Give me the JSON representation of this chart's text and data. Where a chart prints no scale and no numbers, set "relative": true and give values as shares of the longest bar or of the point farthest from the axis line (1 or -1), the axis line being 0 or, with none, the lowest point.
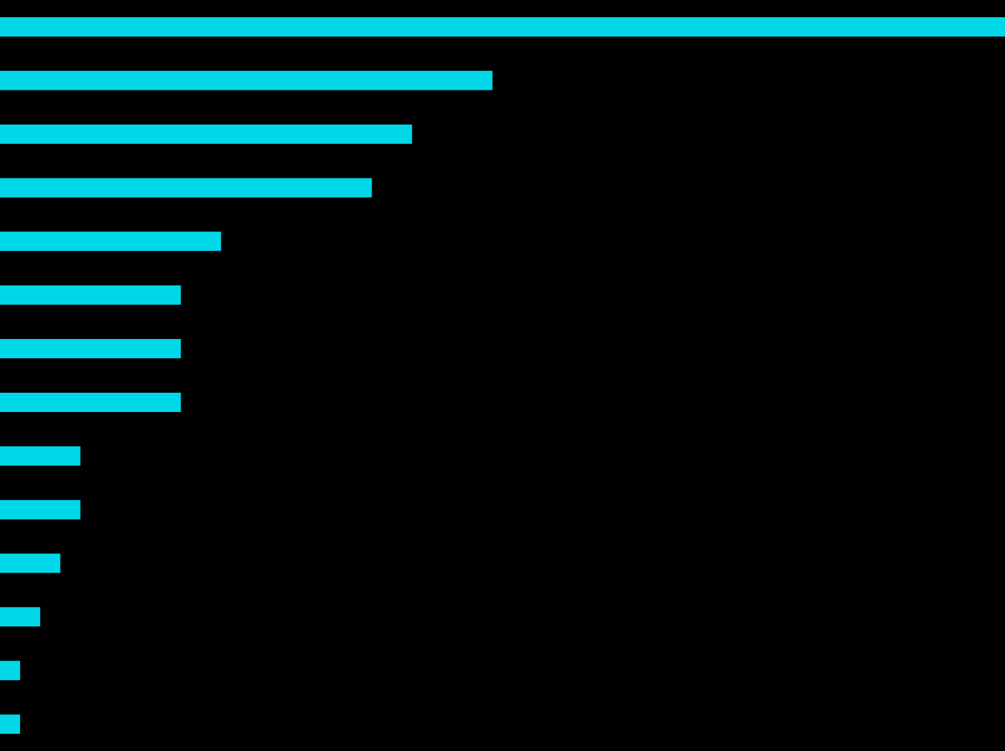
{
  "chart_data": {
    "type": "bar",
    "orientation": "horizontal",
    "relative": true,
    "categories": [
      null,
      null,
      null,
      null,
      null,
      null,
      null,
      null,
      null,
      null,
      null,
      null,
      null,
      null
    ],
    "values": [
      1,
      0.49,
      0.41,
      0.37,
      0.22,
      0.18,
      0.18,
      0.18,
      0.08,
      0.08,
      0.06,
      0.04,
      0.02,
      0.02
    ],
    "color": "#00d8e8"
  }
}
